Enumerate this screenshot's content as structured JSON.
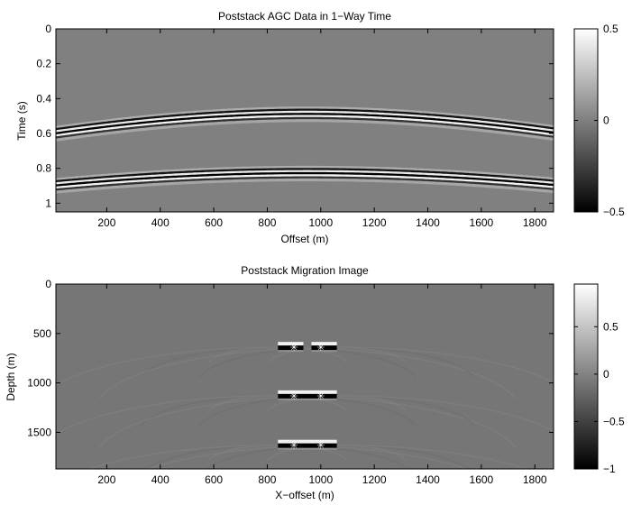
{
  "chart_data": [
    {
      "type": "heatmap",
      "title": "Poststack AGC Data in 1−Way Time",
      "xlabel": "Offset (m)",
      "ylabel": "Time (s)",
      "xlim": [
        10,
        1870
      ],
      "ylim": [
        1.05,
        0
      ],
      "x_ticks": [
        200,
        400,
        600,
        800,
        1000,
        1200,
        1400,
        1600,
        1800
      ],
      "y_ticks": [
        0,
        0.2,
        0.4,
        0.6,
        0.8,
        1
      ],
      "y_tick_labels": [
        "0",
        "0.2",
        "0.4",
        "0.6",
        "0.8",
        "1"
      ],
      "colormap": "gray",
      "background_value": 0,
      "colorbar": {
        "min": -0.5,
        "max": 0.5,
        "ticks": [
          0.5,
          0,
          -0.5
        ],
        "tick_labels": [
          "0.5",
          "0",
          "−0.5"
        ]
      },
      "events": [
        {
          "apex_offset": 950,
          "apex_time": 0.49,
          "velocity": 2000
        },
        {
          "apex_offset": 950,
          "apex_time": 0.83,
          "velocity": 2000
        }
      ]
    },
    {
      "type": "heatmap",
      "title": "Poststack Migration Image",
      "xlabel": "X−offset (m)",
      "ylabel": "Depth (m)",
      "xlim": [
        10,
        1870
      ],
      "ylim": [
        1870,
        0
      ],
      "x_ticks": [
        200,
        400,
        600,
        800,
        1000,
        1200,
        1400,
        1600,
        1800
      ],
      "y_ticks": [
        0,
        500,
        1000,
        1500
      ],
      "y_tick_labels": [
        "0",
        "500",
        "1000",
        "1500"
      ],
      "colormap": "gray",
      "background_value": -0.1,
      "colorbar": {
        "min": -1,
        "max": 0.95,
        "ticks": [
          0.5,
          0,
          -0.5,
          -1
        ],
        "tick_labels": [
          "0.5",
          "0",
          "−0.5",
          "−1"
        ]
      },
      "reflectors": [
        {
          "depth": 640,
          "x_start": 840,
          "x_end": 1060,
          "gap": [
            935,
            965
          ]
        },
        {
          "depth": 1130,
          "x_start": 840,
          "x_end": 1060
        },
        {
          "depth": 1630,
          "x_start": 840,
          "x_end": 1060
        }
      ],
      "point_markers": [
        {
          "x": 900,
          "depth": 640
        },
        {
          "x": 1000,
          "depth": 640
        },
        {
          "x": 900,
          "depth": 1130
        },
        {
          "x": 1000,
          "depth": 1130
        },
        {
          "x": 900,
          "depth": 1630
        },
        {
          "x": 1000,
          "depth": 1630
        }
      ]
    }
  ]
}
